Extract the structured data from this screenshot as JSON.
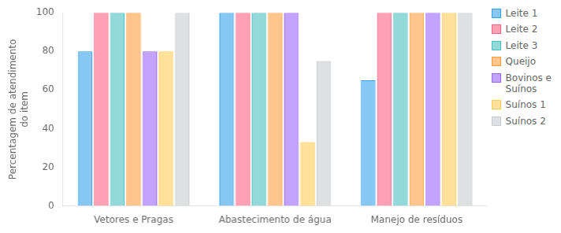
{
  "chart_data": {
    "type": "bar",
    "categories": [
      "Vetores e Pragas",
      "Abastecimento de água",
      "Manejo de resíduos"
    ],
    "series": [
      {
        "name": "Leite 1",
        "values": [
          80,
          100,
          65
        ]
      },
      {
        "name": "Leite 2",
        "values": [
          100,
          100,
          100
        ]
      },
      {
        "name": "Leite 3",
        "values": [
          100,
          100,
          100
        ]
      },
      {
        "name": "Queijo",
        "values": [
          100,
          100,
          100
        ]
      },
      {
        "name": "Bovinos e\nSuínos",
        "values": [
          80,
          100,
          100
        ]
      },
      {
        "name": "Suínos 1",
        "values": [
          80,
          33,
          100
        ]
      },
      {
        "name": "Suínos 2",
        "values": [
          100,
          75,
          100
        ]
      }
    ],
    "ylabel": "Percentagem de atendimento\ndo item",
    "ylim": [
      0,
      100
    ],
    "yticks": [
      0,
      20,
      40,
      60,
      80,
      100
    ],
    "grid": false,
    "legend": "right"
  }
}
